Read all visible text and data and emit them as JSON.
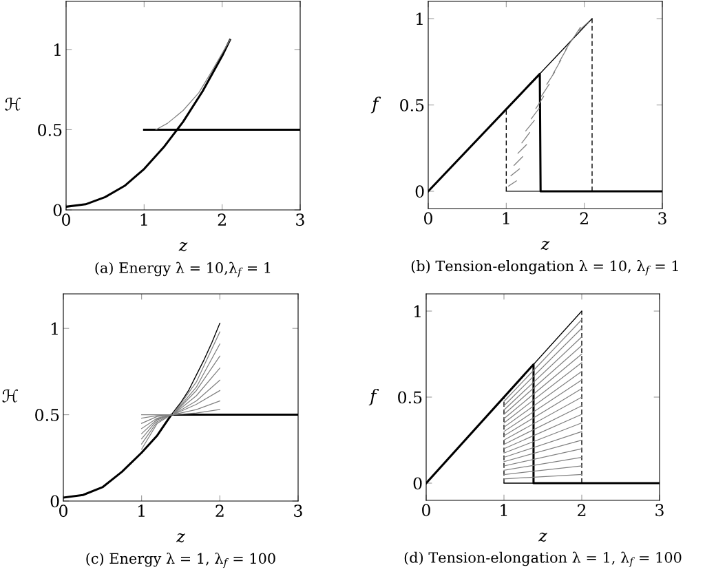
{
  "chart_data": [
    {
      "type": "line",
      "title": "(a) Energy λ = 10,λ$_{f}$ = 1",
      "xlabel": "z",
      "ylabel": "ℋ",
      "xlim": [
        0,
        3
      ],
      "ylim": [
        0,
        1.3
      ],
      "xticks": [
        0,
        1,
        2,
        3
      ],
      "yticks": [
        0,
        0.5,
        1
      ],
      "legend": false,
      "series": [
        {
          "color": "#000000",
          "x": [
            0,
            0.25,
            0.5,
            0.75,
            1,
            1.25,
            1.5,
            1.75,
            2,
            2.1
          ],
          "values": [
            0.02,
            0.035,
            0.08,
            0.15,
            0.255,
            0.39,
            0.55,
            0.74,
            0.96,
            1.06
          ]
        },
        {
          "color": "#000000",
          "x": [
            1,
            3
          ],
          "values": [
            0.5,
            0.5
          ]
        },
        {
          "color": "#808080",
          "x": [
            1.15,
            1.3,
            1.5,
            1.7,
            1.85,
            2.1
          ],
          "values": [
            0.5,
            0.54,
            0.62,
            0.73,
            0.85,
            1.06
          ]
        }
      ]
    },
    {
      "type": "line",
      "title": "(b) Tension-elongation λ = 10, λ$_{f}$ = 1",
      "xlabel": "z",
      "ylabel": "f",
      "xlim": [
        0,
        3
      ],
      "ylim": [
        -0.1,
        1.1
      ],
      "xticks": [
        0,
        1,
        2,
        3
      ],
      "yticks": [
        0,
        0.5,
        1
      ],
      "legend": false,
      "series": [
        {
          "color": "#000000",
          "x": [
            0,
            1.43,
            1.44,
            3
          ],
          "values": [
            0,
            0.68,
            0,
            0
          ]
        },
        {
          "color": "#000000",
          "x": [
            1.43,
            2.1
          ],
          "values": [
            0.68,
            1.0
          ]
        },
        {
          "color": "#000000",
          "x": [
            1,
            1.44
          ],
          "values": [
            0,
            0
          ]
        },
        {
          "color": "#000000",
          "line_style": "dashed",
          "x": [
            1,
            1
          ],
          "values": [
            0,
            0.48
          ]
        },
        {
          "color": "#000000",
          "line_style": "dashed",
          "x": [
            2.1,
            2.1
          ],
          "values": [
            0,
            1.0
          ]
        },
        {
          "color": "#808080",
          "x": [
            1.03,
            1.13
          ],
          "values": [
            0.03,
            0.06
          ]
        },
        {
          "color": "#808080",
          "x": [
            1.06,
            1.17
          ],
          "values": [
            0.09,
            0.13
          ]
        },
        {
          "color": "#808080",
          "x": [
            1.1,
            1.21
          ],
          "values": [
            0.15,
            0.2
          ]
        },
        {
          "color": "#808080",
          "x": [
            1.15,
            1.26
          ],
          "values": [
            0.22,
            0.27
          ]
        },
        {
          "color": "#808080",
          "x": [
            1.2,
            1.3
          ],
          "values": [
            0.28,
            0.34
          ]
        },
        {
          "color": "#808080",
          "x": [
            1.25,
            1.36
          ],
          "values": [
            0.35,
            0.41
          ]
        },
        {
          "color": "#808080",
          "x": [
            1.32,
            1.42
          ],
          "values": [
            0.42,
            0.48
          ]
        },
        {
          "color": "#808080",
          "x": [
            1.38,
            1.48
          ],
          "values": [
            0.48,
            0.55
          ]
        },
        {
          "color": "#808080",
          "x": [
            1.45,
            1.55
          ],
          "values": [
            0.55,
            0.62
          ]
        },
        {
          "color": "#808080",
          "x": [
            1.52,
            1.62
          ],
          "values": [
            0.62,
            0.69
          ]
        },
        {
          "color": "#808080",
          "x": [
            1.6,
            1.7
          ],
          "values": [
            0.68,
            0.76
          ]
        },
        {
          "color": "#808080",
          "x": [
            1.68,
            1.78
          ],
          "values": [
            0.75,
            0.83
          ]
        },
        {
          "color": "#808080",
          "x": [
            1.76,
            1.86
          ],
          "values": [
            0.82,
            0.89
          ]
        },
        {
          "color": "#808080",
          "x": [
            1.85,
            1.95
          ],
          "values": [
            0.88,
            0.95
          ]
        },
        {
          "color": "#808080",
          "x": [
            1.93,
            2.05
          ],
          "values": [
            0.93,
            0.98
          ]
        }
      ]
    },
    {
      "type": "line",
      "title": "(c) Energy λ = 1, λ$_{f}$ = 100",
      "xlabel": "z",
      "ylabel": "ℋ",
      "xlim": [
        0,
        3
      ],
      "ylim": [
        0,
        1.2
      ],
      "xticks": [
        0,
        1,
        2,
        3
      ],
      "yticks": [
        0,
        0.5,
        1
      ],
      "legend": false,
      "series": [
        {
          "color": "#000000",
          "x": [
            0,
            0.25,
            0.5,
            0.75,
            1,
            1.2,
            1.38,
            3
          ],
          "values": [
            0.02,
            0.035,
            0.08,
            0.17,
            0.28,
            0.38,
            0.5,
            0.5
          ]
        },
        {
          "color": "#000000",
          "x": [
            1.38,
            1.5,
            1.6,
            1.7,
            1.8,
            1.9,
            2
          ],
          "values": [
            0.5,
            0.57,
            0.64,
            0.73,
            0.82,
            0.92,
            1.03
          ]
        },
        {
          "color": "#808080",
          "x": [
            1,
            1.2,
            1.38
          ],
          "values": [
            0.3,
            0.45,
            0.5
          ]
        },
        {
          "color": "#808080",
          "x": [
            1,
            1.2,
            1.38
          ],
          "values": [
            0.33,
            0.46,
            0.5
          ]
        },
        {
          "color": "#808080",
          "x": [
            1,
            1.2,
            1.38
          ],
          "values": [
            0.36,
            0.47,
            0.5
          ]
        },
        {
          "color": "#808080",
          "x": [
            1,
            1.2,
            1.38
          ],
          "values": [
            0.39,
            0.475,
            0.5
          ]
        },
        {
          "color": "#808080",
          "x": [
            1,
            1.2,
            1.38
          ],
          "values": [
            0.42,
            0.48,
            0.5
          ]
        },
        {
          "color": "#808080",
          "x": [
            1,
            1.2,
            1.38
          ],
          "values": [
            0.45,
            0.49,
            0.5
          ]
        },
        {
          "color": "#808080",
          "x": [
            1,
            1.2,
            1.38
          ],
          "values": [
            0.48,
            0.495,
            0.5
          ]
        },
        {
          "color": "#808080",
          "x": [
            1,
            1.38
          ],
          "values": [
            0.5,
            0.5
          ]
        },
        {
          "color": "#808080",
          "x": [
            1.4,
            1.7,
            2
          ],
          "values": [
            0.5,
            0.51,
            0.53
          ]
        },
        {
          "color": "#808080",
          "x": [
            1.4,
            1.7,
            2
          ],
          "values": [
            0.5,
            0.53,
            0.58
          ]
        },
        {
          "color": "#808080",
          "x": [
            1.4,
            1.7,
            2
          ],
          "values": [
            0.5,
            0.56,
            0.64
          ]
        },
        {
          "color": "#808080",
          "x": [
            1.4,
            1.7,
            2
          ],
          "values": [
            0.5,
            0.58,
            0.7
          ]
        },
        {
          "color": "#808080",
          "x": [
            1.4,
            1.7,
            2
          ],
          "values": [
            0.5,
            0.61,
            0.77
          ]
        },
        {
          "color": "#808080",
          "x": [
            1.4,
            1.7,
            2
          ],
          "values": [
            0.5,
            0.64,
            0.84
          ]
        },
        {
          "color": "#808080",
          "x": [
            1.4,
            1.7,
            2
          ],
          "values": [
            0.5,
            0.66,
            0.91
          ]
        },
        {
          "color": "#808080",
          "x": [
            1.4,
            1.7,
            2
          ],
          "values": [
            0.5,
            0.69,
            0.98
          ]
        }
      ]
    },
    {
      "type": "line",
      "title": "(d) Tension-elongation λ = 1, λ$_{f}$ = 100",
      "xlabel": "z",
      "ylabel": "f",
      "xlim": [
        0,
        3
      ],
      "ylim": [
        -0.1,
        1.1
      ],
      "xticks": [
        0,
        1,
        2,
        3
      ],
      "yticks": [
        0,
        0.5,
        1
      ],
      "legend": false,
      "series": [
        {
          "color": "#000000",
          "x": [
            0,
            1.38,
            1.38,
            3
          ],
          "values": [
            0,
            0.69,
            0,
            0
          ]
        },
        {
          "color": "#000000",
          "x": [
            1.38,
            2
          ],
          "values": [
            0.69,
            1.0
          ]
        },
        {
          "color": "#000000",
          "x": [
            1,
            1.38
          ],
          "values": [
            0,
            0
          ]
        },
        {
          "color": "#000000",
          "line_style": "dashed",
          "x": [
            1,
            1
          ],
          "values": [
            0,
            0.5
          ]
        },
        {
          "color": "#000000",
          "line_style": "dashed",
          "x": [
            2,
            2
          ],
          "values": [
            0,
            1.0
          ]
        },
        {
          "color": "#808080",
          "x": [
            1,
            2
          ],
          "values": [
            0.475,
            0.95
          ]
        },
        {
          "color": "#808080",
          "x": [
            1,
            2
          ],
          "values": [
            0.45,
            0.9
          ]
        },
        {
          "color": "#808080",
          "x": [
            1,
            2
          ],
          "values": [
            0.425,
            0.85
          ]
        },
        {
          "color": "#808080",
          "x": [
            1,
            2
          ],
          "values": [
            0.4,
            0.8
          ]
        },
        {
          "color": "#808080",
          "x": [
            1,
            2
          ],
          "values": [
            0.375,
            0.75
          ]
        },
        {
          "color": "#808080",
          "x": [
            1,
            2
          ],
          "values": [
            0.35,
            0.7
          ]
        },
        {
          "color": "#808080",
          "x": [
            1,
            2
          ],
          "values": [
            0.325,
            0.65
          ]
        },
        {
          "color": "#808080",
          "x": [
            1,
            2
          ],
          "values": [
            0.3,
            0.6
          ]
        },
        {
          "color": "#808080",
          "x": [
            1,
            2
          ],
          "values": [
            0.275,
            0.55
          ]
        },
        {
          "color": "#808080",
          "x": [
            1,
            2
          ],
          "values": [
            0.25,
            0.5
          ]
        },
        {
          "color": "#808080",
          "x": [
            1,
            2
          ],
          "values": [
            0.225,
            0.45
          ]
        },
        {
          "color": "#808080",
          "x": [
            1,
            2
          ],
          "values": [
            0.2,
            0.4
          ]
        },
        {
          "color": "#808080",
          "x": [
            1,
            2
          ],
          "values": [
            0.175,
            0.35
          ]
        },
        {
          "color": "#808080",
          "x": [
            1,
            2
          ],
          "values": [
            0.15,
            0.3
          ]
        },
        {
          "color": "#808080",
          "x": [
            1,
            2
          ],
          "values": [
            0.125,
            0.25
          ]
        },
        {
          "color": "#808080",
          "x": [
            1,
            2
          ],
          "values": [
            0.1,
            0.2
          ]
        },
        {
          "color": "#808080",
          "x": [
            1,
            2
          ],
          "values": [
            0.075,
            0.15
          ]
        },
        {
          "color": "#808080",
          "x": [
            1,
            2
          ],
          "values": [
            0.05,
            0.1
          ]
        },
        {
          "color": "#808080",
          "x": [
            1,
            2
          ],
          "values": [
            0.025,
            0.05
          ]
        }
      ]
    }
  ]
}
